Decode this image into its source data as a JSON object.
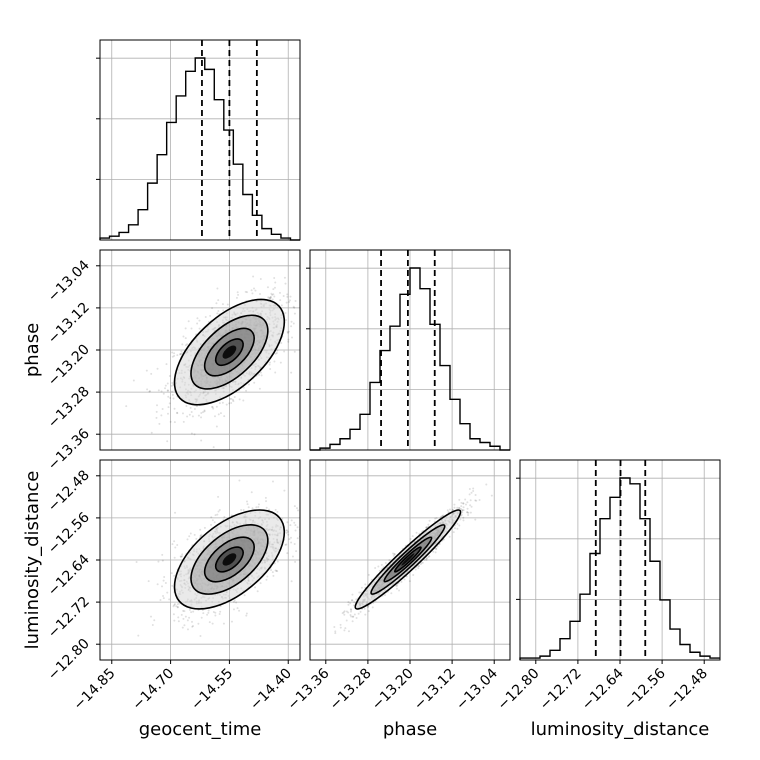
{
  "chart_data": {
    "type": "corner",
    "parameters": [
      "geocent_time",
      "phase",
      "luminosity_distance"
    ],
    "ranges": {
      "geocent_time": [
        -14.88,
        -14.37
      ],
      "phase": [
        -13.39,
        -13.01
      ],
      "luminosity_distance": [
        -12.83,
        -12.45
      ]
    },
    "ticks": {
      "geocent_time": [
        "-14.85",
        "-14.70",
        "-14.55",
        "-14.40"
      ],
      "phase": [
        "-13.36",
        "-13.28",
        "-13.20",
        "-13.12",
        "-13.04"
      ],
      "luminosity_distance": [
        "-12.80",
        "-12.72",
        "-12.64",
        "-12.56",
        "-12.48"
      ]
    },
    "histograms": {
      "geocent_time": {
        "counts": [
          1,
          2,
          4,
          8,
          16,
          30,
          45,
          62,
          76,
          89,
          96,
          90,
          74,
          58,
          40,
          24,
          13,
          6,
          3,
          1,
          0
        ],
        "quantiles": [
          -14.62,
          -14.55,
          -14.48
        ]
      },
      "phase": {
        "counts": [
          0,
          1,
          3,
          6,
          11,
          19,
          36,
          53,
          66,
          83,
          97,
          86,
          67,
          45,
          27,
          14,
          6,
          4,
          2,
          0
        ],
        "quantiles": [
          -13.255,
          -13.204,
          -13.153
        ]
      },
      "luminosity_distance": {
        "counts": [
          1,
          1,
          2,
          5,
          11,
          20,
          34,
          55,
          73,
          84,
          94,
          91,
          73,
          51,
          31,
          16,
          8,
          4,
          2,
          1
        ],
        "quantiles": [
          -12.686,
          -12.639,
          -12.592
        ]
      }
    },
    "scatter_panels": [
      {
        "x": "geocent_time",
        "y": "phase",
        "mean": [
          -14.55,
          -13.204
        ],
        "sd": [
          0.07,
          0.05
        ],
        "corr": 0.58
      },
      {
        "x": "geocent_time",
        "y": "luminosity_distance",
        "mean": [
          -14.55,
          -12.639
        ],
        "sd": [
          0.07,
          0.047
        ],
        "corr": 0.55
      },
      {
        "x": "phase",
        "y": "luminosity_distance",
        "mean": [
          -13.204,
          -12.639
        ],
        "sd": [
          0.05,
          0.047
        ],
        "corr": 0.96
      }
    ],
    "grid": true,
    "title": ""
  }
}
